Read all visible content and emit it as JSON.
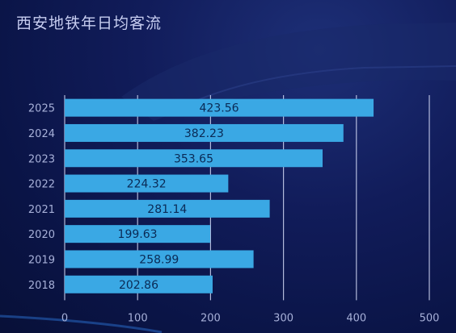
{
  "title": "西安地铁年日均客流",
  "colors": {
    "bar": "#3aa8e4",
    "bar_label": "#0a2a55",
    "grid": "#cfd6f2",
    "tick_label": "#a7b0d8",
    "title": "#c7cdf0"
  },
  "chart_data": {
    "type": "bar",
    "orientation": "horizontal",
    "title": "西安地铁年日均客流",
    "xlabel": "",
    "ylabel": "",
    "categories": [
      "2025",
      "2024",
      "2023",
      "2022",
      "2021",
      "2020",
      "2019",
      "2018"
    ],
    "values": [
      423.56,
      382.23,
      353.65,
      224.32,
      281.14,
      199.63,
      258.99,
      202.86
    ],
    "value_labels": [
      "423.56",
      "382.23",
      "353.65",
      "224.32",
      "281.14",
      "199.63",
      "258.99",
      "202.86"
    ],
    "xlim": [
      0,
      500
    ],
    "xticks": [
      "0",
      "100",
      "200",
      "300",
      "400",
      "500"
    ],
    "grid": true,
    "legend": "none"
  }
}
